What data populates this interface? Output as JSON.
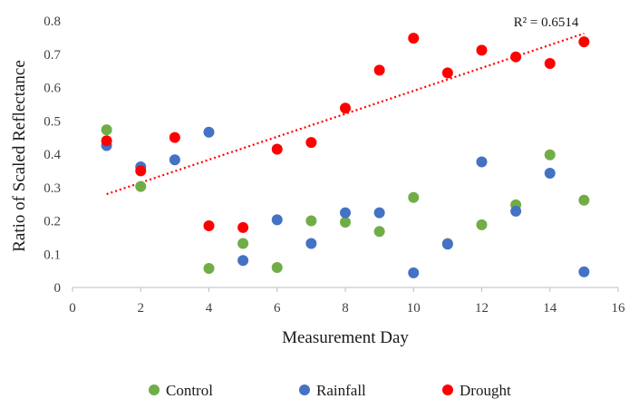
{
  "chart_data": {
    "type": "scatter",
    "title": "",
    "xlabel": "Measurement Day",
    "ylabel": "Ratio of Scaled Reflectance",
    "xlim": [
      0,
      16
    ],
    "ylim": [
      0,
      0.8
    ],
    "x_ticks": [
      "0",
      "2",
      "4",
      "6",
      "8",
      "10",
      "12",
      "14",
      "16"
    ],
    "y_ticks": [
      "0",
      "0.1",
      "0.2",
      "0.3",
      "0.4",
      "0.5",
      "0.6",
      "0.7",
      "0.8"
    ],
    "grid": false,
    "legend_position": "bottom",
    "series": [
      {
        "name": "Control",
        "color": "#70ad47",
        "points": [
          [
            1,
            0.473
          ],
          [
            2,
            0.303
          ],
          [
            4,
            0.057
          ],
          [
            5,
            0.132
          ],
          [
            6,
            0.06
          ],
          [
            7,
            0.2
          ],
          [
            8,
            0.196
          ],
          [
            9,
            0.168
          ],
          [
            10,
            0.27
          ],
          [
            11,
            0.132
          ],
          [
            12,
            0.188
          ],
          [
            13,
            0.248
          ],
          [
            14,
            0.398
          ],
          [
            15,
            0.262
          ]
        ]
      },
      {
        "name": "Rainfall",
        "color": "#4472c4",
        "points": [
          [
            1,
            0.426
          ],
          [
            2,
            0.362
          ],
          [
            3,
            0.383
          ],
          [
            4,
            0.466
          ],
          [
            5,
            0.081
          ],
          [
            6,
            0.203
          ],
          [
            7,
            0.132
          ],
          [
            8,
            0.224
          ],
          [
            9,
            0.224
          ],
          [
            10,
            0.044
          ],
          [
            11,
            0.13
          ],
          [
            12,
            0.377
          ],
          [
            13,
            0.229
          ],
          [
            14,
            0.343
          ],
          [
            15,
            0.047
          ]
        ]
      },
      {
        "name": "Drought",
        "color": "#ff0000",
        "points": [
          [
            1,
            0.44
          ],
          [
            2,
            0.35
          ],
          [
            3,
            0.45
          ],
          [
            4,
            0.185
          ],
          [
            5,
            0.18
          ],
          [
            6,
            0.415
          ],
          [
            7,
            0.435
          ],
          [
            8,
            0.538
          ],
          [
            9,
            0.652
          ],
          [
            10,
            0.748
          ],
          [
            11,
            0.644
          ],
          [
            12,
            0.712
          ],
          [
            13,
            0.692
          ],
          [
            14,
            0.672
          ],
          [
            15,
            0.737
          ]
        ]
      }
    ],
    "trendline": {
      "series": "Drought",
      "type": "linear",
      "style": "dotted",
      "color": "#ff0000",
      "x_range": [
        1,
        15
      ],
      "y_range": [
        0.28,
        0.762
      ],
      "annotation": "R² = 0.6514"
    }
  }
}
